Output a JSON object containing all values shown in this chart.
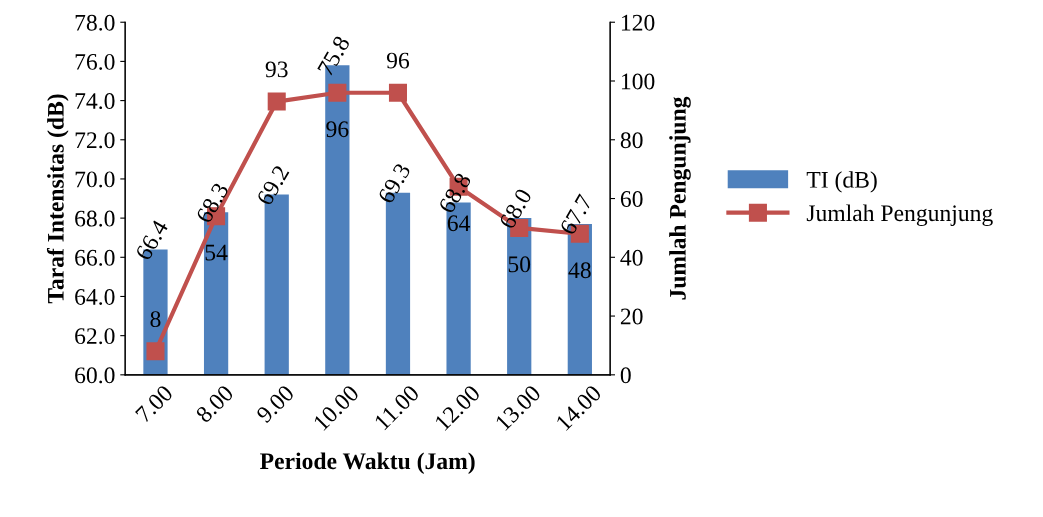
{
  "chart_data": {
    "type": "bar",
    "xlabel": "Periode Waktu (Jam)",
    "ylabel": "Taraf Intensitas (dB)",
    "y2label": "Jumlah Pengunjung",
    "categories": [
      "7.00",
      "8.00",
      "9.00",
      "10.00",
      "11.00",
      "12.00",
      "13.00",
      "14.00"
    ],
    "series": [
      {
        "name": "TI (dB)",
        "color": "#4f81bd",
        "values": [
          66.4,
          68.3,
          69.2,
          75.8,
          69.3,
          68.8,
          68.0,
          67.7
        ],
        "value_labels": [
          "66.4",
          "68.3",
          "69.2",
          "75.8",
          "69.3",
          "68.8",
          "68.0",
          "67.7"
        ]
      },
      {
        "name": "Jumlah Pengunjung",
        "type": "line",
        "axis": "y2",
        "color": "#c0504d",
        "marker": "square",
        "values": [
          8,
          54,
          93,
          96,
          96,
          64,
          50,
          48
        ],
        "value_labels": [
          "8",
          "54",
          "93",
          "96",
          "96",
          "64",
          "50",
          "48"
        ]
      }
    ],
    "ylim": [
      60,
      78
    ],
    "yticks": [
      {
        "value": 60,
        "label": "60.0"
      },
      {
        "value": 62,
        "label": "62.0"
      },
      {
        "value": 64,
        "label": "64.0"
      },
      {
        "value": 66,
        "label": "66.0"
      },
      {
        "value": 68,
        "label": "68.0"
      },
      {
        "value": 70,
        "label": "70.0"
      },
      {
        "value": 72,
        "label": "72.0"
      },
      {
        "value": 74,
        "label": "74.0"
      },
      {
        "value": 76,
        "label": "76.0"
      },
      {
        "value": 78,
        "label": "78.0"
      }
    ],
    "y2lim": [
      0,
      120
    ],
    "y2ticks": [
      0,
      20,
      40,
      60,
      80,
      100,
      120
    ],
    "grid": false,
    "legend": "right"
  }
}
